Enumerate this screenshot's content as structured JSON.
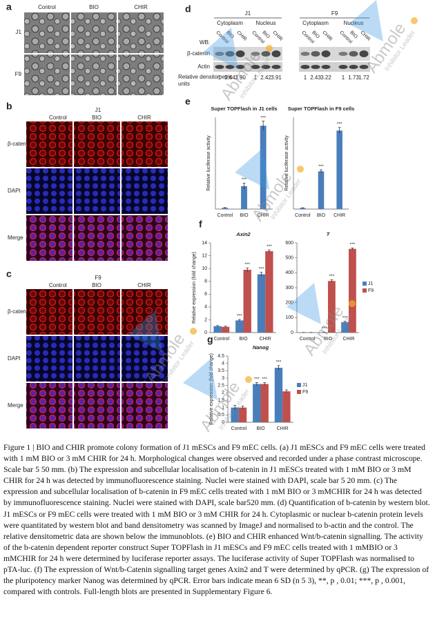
{
  "panels": {
    "a": {
      "letter": "a",
      "columns": [
        "Control",
        "BIO",
        "CHIR"
      ],
      "rows": [
        "J1",
        "F9"
      ]
    },
    "b": {
      "letter": "b",
      "cell_line": "J1",
      "columns": [
        "Control",
        "BIO",
        "CHIR"
      ],
      "rows": [
        "β-catenin",
        "DAPI",
        "Merge"
      ]
    },
    "c": {
      "letter": "c",
      "cell_line": "F9",
      "columns": [
        "Control",
        "BIO",
        "CHIR"
      ],
      "rows": [
        "β-catenin",
        "DAPI",
        "Merge"
      ]
    },
    "d": {
      "letter": "d",
      "groups": [
        {
          "cell_line": "J1",
          "fractions": [
            "Cytoplasm",
            "Nucleus"
          ]
        },
        {
          "cell_line": "F9",
          "fractions": [
            "Cytoplasm",
            "Nucleus"
          ]
        }
      ],
      "lanes": [
        "Control",
        "BIO",
        "CHIR"
      ],
      "wb_label": "WB:",
      "blots": [
        "β-catenin",
        "Actin"
      ],
      "densitometry_label": [
        "Relative densitometric",
        "units"
      ],
      "densitometry": [
        "1",
        "2.64",
        "3.90",
        "1",
        "2.42",
        "3.91",
        "1",
        "2.43",
        "3.22",
        "1",
        "1.73",
        "1.72"
      ]
    },
    "e": {
      "letter": "e"
    },
    "f": {
      "letter": "f"
    },
    "g": {
      "letter": "g"
    }
  },
  "watermark": {
    "brand": "Abmole",
    "tagline": "Inhibitor Leader"
  },
  "chart_data": [
    {
      "type": "bar",
      "title": "Super TOPFlash in J1 cells",
      "ylabel": "Relative luciferase activity",
      "categories": [
        "Control",
        "BIO",
        "CHIR"
      ],
      "ylim": [
        0,
        600
      ],
      "series": [
        {
          "color": "#4a7ebb",
          "values": [
            8,
            150,
            545
          ],
          "errors": [
            2,
            20,
            30
          ],
          "significance": [
            null,
            "***",
            "***"
          ]
        }
      ]
    },
    {
      "type": "bar",
      "title": "Super TOPFlash in F9 cells",
      "ylabel": "Relative luciferase activity",
      "categories": [
        "Control",
        "BIO",
        "CHIR"
      ],
      "ylim": [
        0,
        90
      ],
      "series": [
        {
          "color": "#4a7ebb",
          "values": [
            1,
            37,
            77
          ],
          "errors": [
            0.3,
            1.5,
            3
          ],
          "significance": [
            null,
            "***",
            "***"
          ]
        }
      ]
    },
    {
      "type": "bar",
      "title": "Axin2",
      "ylabel": "Relative expression (fold change)",
      "categories": [
        "Control",
        "BIO",
        "CHIR"
      ],
      "ylim": [
        0,
        14
      ],
      "yticks": [
        0,
        2,
        4,
        6,
        8,
        10,
        12,
        14
      ],
      "series": [
        {
          "name": "J1",
          "color": "#4a7ebb",
          "values": [
            1,
            1.9,
            9.1
          ],
          "errors": [
            0.1,
            0.15,
            0.3
          ],
          "significance": [
            null,
            "***",
            "***"
          ]
        },
        {
          "name": "F9",
          "color": "#c0504d",
          "values": [
            0.9,
            9.8,
            12.7
          ],
          "errors": [
            0.1,
            0.3,
            0.2
          ],
          "significance": [
            null,
            "***",
            "***"
          ]
        }
      ]
    },
    {
      "type": "bar",
      "title": "T",
      "categories": [
        "Control",
        "BIO",
        "CHIR"
      ],
      "ylim": [
        0,
        600
      ],
      "yticks": [
        0,
        100,
        200,
        300,
        400,
        500,
        600
      ],
      "legend": "right",
      "series": [
        {
          "name": "J1",
          "color": "#4a7ebb",
          "values": [
            1,
            2,
            70
          ],
          "errors": [
            0.2,
            0.5,
            5
          ],
          "significance": [
            null,
            "***",
            "***"
          ]
        },
        {
          "name": "F9",
          "color": "#c0504d",
          "values": [
            1,
            345,
            560
          ],
          "errors": [
            0.2,
            8,
            6
          ],
          "significance": [
            null,
            "***",
            "***"
          ]
        }
      ]
    },
    {
      "type": "bar",
      "title": "Nanog",
      "ylabel": "Relative expression (fold change)",
      "categories": [
        "Control",
        "BIO",
        "CHIR"
      ],
      "ylim": [
        0,
        4.5
      ],
      "yticks": [
        0,
        0.5,
        1,
        1.5,
        2,
        2.5,
        3,
        3.5,
        4,
        4.5
      ],
      "legend": "right",
      "series": [
        {
          "name": "J1",
          "color": "#4a7ebb",
          "values": [
            1,
            2.6,
            3.7
          ],
          "errors": [
            0.15,
            0.1,
            0.15
          ],
          "significance": [
            null,
            "***",
            "***"
          ]
        },
        {
          "name": "F9",
          "color": "#c0504d",
          "values": [
            1,
            2.6,
            2.1
          ],
          "errors": [
            0.1,
            0.1,
            0.1
          ],
          "significance": [
            null,
            "***",
            null
          ]
        }
      ]
    }
  ],
  "caption": "Figure 1 | BIO and CHIR promote colony formation of J1 mESCs and F9 mEC cells. (a) J1 mESCs and F9 mEC cells were treated with 1 mM BIO or 3 mM CHIR for 24 h. Morphological changes were observed and recorded under a phase contrast microscope. Scale bar 5 50 mm. (b) The expression and subcellular localisation of b-catenin in J1 mESCs treated with 1 mM BIO or 3 mM CHIR for 24 h was detected by immunofluorescence staining. Nuclei were stained with DAPI, scale bar 5 20 mm. (c) The expression and subcellular localisation of b-catenin in F9 mEC cells treated with 1 mM BIO or 3 mMCHIR for 24 h was detected by immunofluorescence staining. Nuclei were stained with DAPI, scale bar520 mm. (d) Quantification of b-catenin by western blot. J1 mESCs or F9 mEC cells were treated with 1 mM BIO or 3 mM CHIR for 24 h. Cytoplasmic or nuclear b-catenin protein levels were quantitated by western blot and band densitometry was scanned by ImageJ and normalised to b-actin and the control. The relative densitometric data are shown below the immunoblots. (e) BIO and CHIR enhanced Wnt/b-catenin signalling. The activity of the b-catenin dependent reporter construct Super TOPFlash in J1 mESCs and F9 mEC cells treated with 1 mMBIO or 3 mMCHIR for 24 h were determined by luciferase reporter assays. The luciferase activity of Super TOPFlash was normalised to pTA-luc. (f) The expression of Wnt/b-Catenin signalling target genes Axin2 and T were determined by qPCR. (g) The expression of the pluripotency marker Nanog was determined by qPCR. Error bars indicate mean 6 SD (n 5 3), **, p , 0.01; ***, p , 0.001, compared with controls. Full-length blots are presented in Supplementary Figure 6."
}
